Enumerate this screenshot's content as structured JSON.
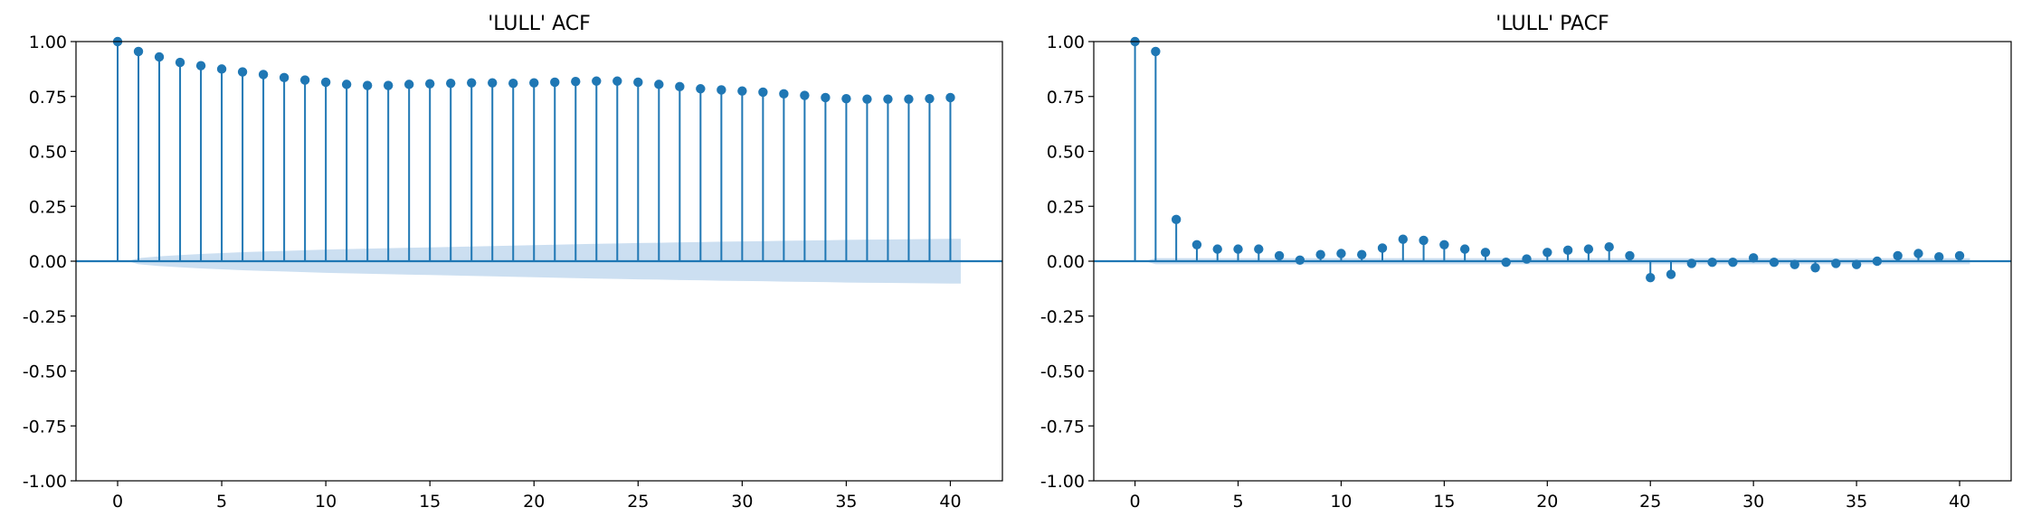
{
  "colors": {
    "series": "#1f77b4",
    "confidence_band": "#c6dbef",
    "zero_line": "#1f77b4"
  },
  "chart_data": [
    {
      "type": "stem",
      "title": "'LULL' ACF",
      "xlabel": "",
      "ylabel": "",
      "xlim": [
        -2,
        42.5
      ],
      "ylim": [
        -1.0,
        1.0
      ],
      "xticks": [
        0,
        5,
        10,
        15,
        20,
        25,
        30,
        35,
        40
      ],
      "yticks": [
        "1.00",
        "0.75",
        "0.50",
        "0.25",
        "0.00",
        "-0.25",
        "-0.50",
        "-0.75",
        "-1.00"
      ],
      "grid": false,
      "lags": [
        0,
        1,
        2,
        3,
        4,
        5,
        6,
        7,
        8,
        9,
        10,
        11,
        12,
        13,
        14,
        15,
        16,
        17,
        18,
        19,
        20,
        21,
        22,
        23,
        24,
        25,
        26,
        27,
        28,
        29,
        30,
        31,
        32,
        33,
        34,
        35,
        36,
        37,
        38,
        39,
        40
      ],
      "values": [
        1.0,
        0.955,
        0.93,
        0.905,
        0.89,
        0.875,
        0.862,
        0.85,
        0.836,
        0.825,
        0.815,
        0.805,
        0.8,
        0.8,
        0.805,
        0.808,
        0.81,
        0.812,
        0.812,
        0.81,
        0.812,
        0.815,
        0.818,
        0.82,
        0.82,
        0.815,
        0.805,
        0.795,
        0.785,
        0.78,
        0.775,
        0.77,
        0.762,
        0.755,
        0.745,
        0.74,
        0.738,
        0.738,
        0.738,
        0.74,
        0.745
      ],
      "confidence_band": [
        0.0,
        0.014,
        0.022,
        0.028,
        0.033,
        0.037,
        0.041,
        0.044,
        0.047,
        0.05,
        0.053,
        0.055,
        0.057,
        0.059,
        0.061,
        0.063,
        0.065,
        0.067,
        0.069,
        0.071,
        0.073,
        0.075,
        0.077,
        0.079,
        0.081,
        0.083,
        0.084,
        0.086,
        0.087,
        0.089,
        0.09,
        0.091,
        0.093,
        0.094,
        0.095,
        0.097,
        0.098,
        0.099,
        0.1,
        0.101,
        0.102
      ]
    },
    {
      "type": "stem",
      "title": "'LULL' PACF",
      "xlabel": "",
      "ylabel": "",
      "xlim": [
        -2,
        42.5
      ],
      "ylim": [
        -1.0,
        1.0
      ],
      "xticks": [
        0,
        5,
        10,
        15,
        20,
        25,
        30,
        35,
        40
      ],
      "yticks": [
        "1.00",
        "0.75",
        "0.50",
        "0.25",
        "0.00",
        "-0.25",
        "-0.50",
        "-0.75",
        "-1.00"
      ],
      "grid": false,
      "lags": [
        0,
        1,
        2,
        3,
        4,
        5,
        6,
        7,
        8,
        9,
        10,
        11,
        12,
        13,
        14,
        15,
        16,
        17,
        18,
        19,
        20,
        21,
        22,
        23,
        24,
        25,
        26,
        27,
        28,
        29,
        30,
        31,
        32,
        33,
        34,
        35,
        36,
        37,
        38,
        39,
        40
      ],
      "values": [
        1.0,
        0.955,
        0.19,
        0.075,
        0.055,
        0.055,
        0.055,
        0.025,
        0.005,
        0.03,
        0.035,
        0.03,
        0.06,
        0.1,
        0.095,
        0.075,
        0.055,
        0.04,
        -0.005,
        0.01,
        0.04,
        0.05,
        0.055,
        0.065,
        0.025,
        -0.075,
        -0.06,
        -0.01,
        -0.005,
        -0.005,
        0.015,
        -0.005,
        -0.015,
        -0.03,
        -0.01,
        -0.015,
        0.0,
        0.025,
        0.035,
        0.02,
        0.025
      ],
      "confidence_band": [
        0.0,
        0.014,
        0.014,
        0.014,
        0.014,
        0.014,
        0.014,
        0.014,
        0.014,
        0.014,
        0.014,
        0.014,
        0.014,
        0.014,
        0.014,
        0.014,
        0.014,
        0.014,
        0.014,
        0.014,
        0.014,
        0.014,
        0.014,
        0.014,
        0.014,
        0.014,
        0.014,
        0.014,
        0.014,
        0.014,
        0.014,
        0.014,
        0.014,
        0.014,
        0.014,
        0.014,
        0.014,
        0.014,
        0.014,
        0.014,
        0.014
      ]
    }
  ]
}
